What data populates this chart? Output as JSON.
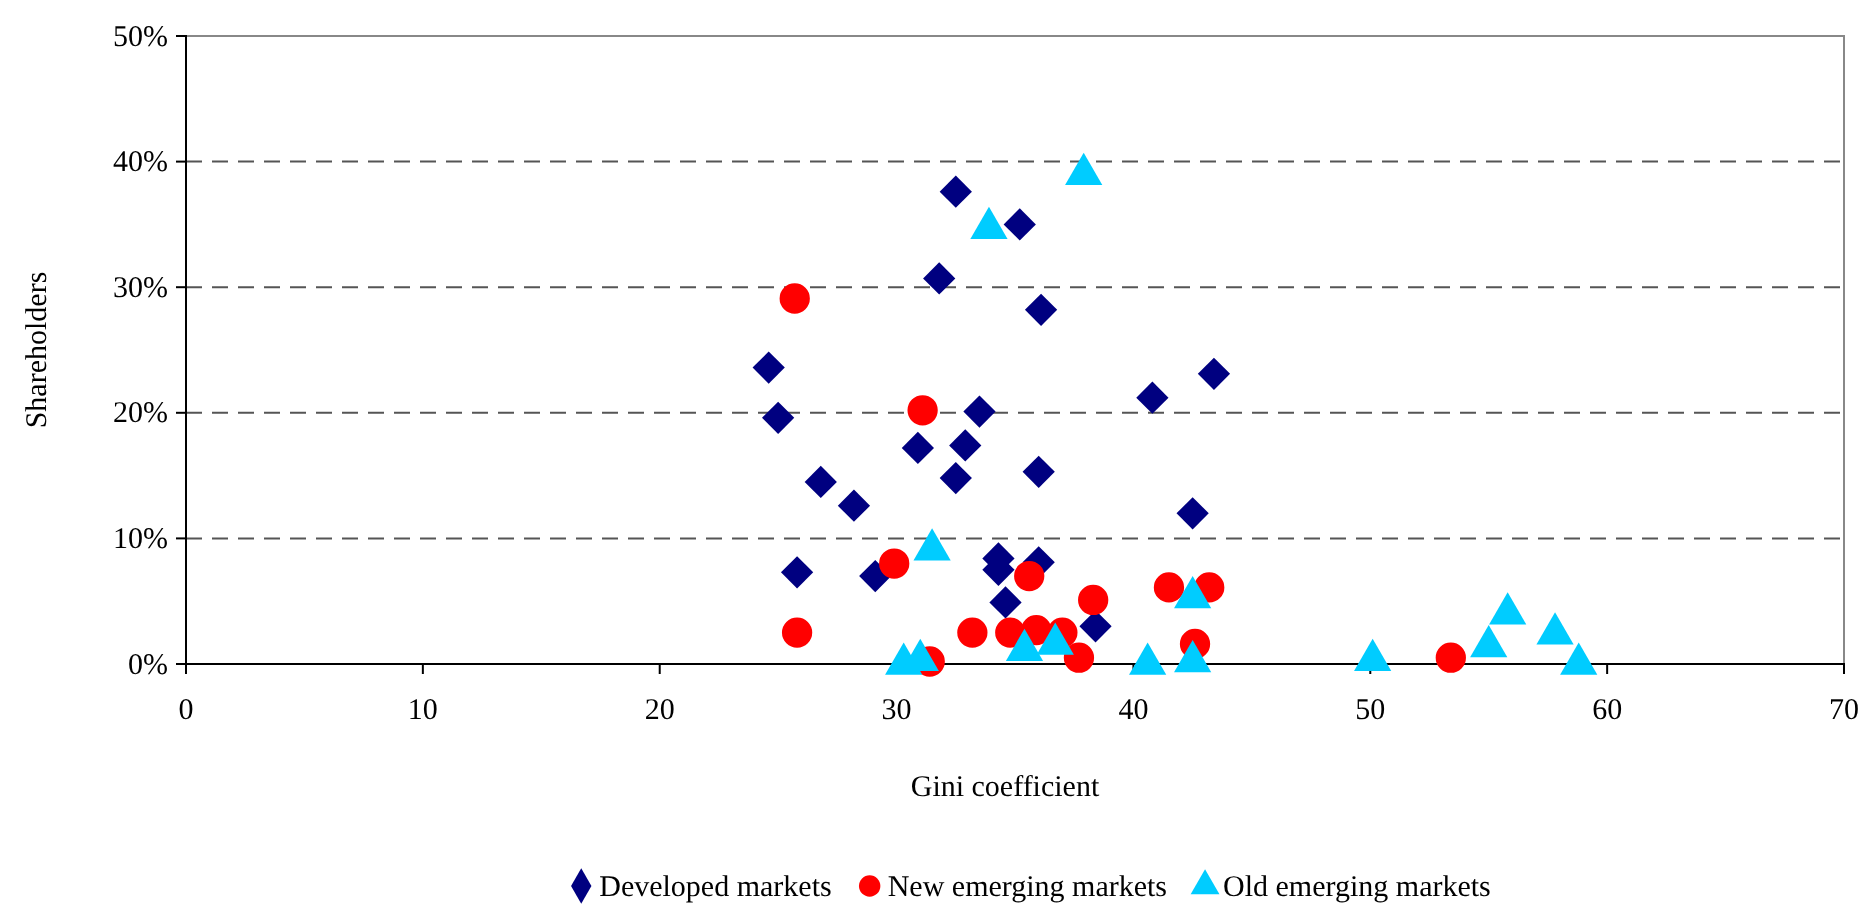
{
  "chart_data": {
    "type": "scatter",
    "xlabel": "Gini coefficient",
    "ylabel": "Shareholders",
    "xlim": [
      0,
      70
    ],
    "xticks": [
      0,
      10,
      20,
      30,
      40,
      50,
      60,
      70
    ],
    "ylim": [
      0,
      50
    ],
    "yticks": [
      {
        "value": 0,
        "label": "0%"
      },
      {
        "value": 10,
        "label": "10%"
      },
      {
        "value": 20,
        "label": "20%"
      },
      {
        "value": 30,
        "label": "30%"
      },
      {
        "value": 40,
        "label": "40%"
      },
      {
        "value": 50,
        "label": "50%"
      }
    ],
    "grid": "y",
    "legend": "bottom",
    "series": [
      {
        "name": "Developed markets",
        "color": "#000080",
        "marker": "diamond",
        "x": [
          24.6,
          25.0,
          25.8,
          26.8,
          28.2,
          29.1,
          30.9,
          32.5,
          32.9,
          33.5,
          31.8,
          32.5,
          35.2,
          36.1,
          36.0,
          34.3,
          34.3,
          34.6,
          36.0,
          38.4,
          40.8,
          43.4,
          42.5
        ],
        "values": [
          23.6,
          19.6,
          7.3,
          14.5,
          12.6,
          7.0,
          17.2,
          14.8,
          17.4,
          20.1,
          30.7,
          37.6,
          35.0,
          28.2,
          15.3,
          8.4,
          7.5,
          4.9,
          8.1,
          3.0,
          21.2,
          23.1,
          12.0
        ]
      },
      {
        "name": "New emerging markets",
        "color": "#ff0000",
        "marker": "circle",
        "x": [
          25.7,
          25.8,
          31.1,
          29.9,
          31.4,
          33.2,
          35.6,
          34.8,
          35.9,
          37.0,
          37.7,
          38.3,
          41.5,
          43.2,
          42.6,
          53.4
        ],
        "values": [
          29.1,
          2.5,
          20.2,
          8.0,
          0.2,
          2.5,
          7.0,
          2.5,
          2.7,
          2.5,
          0.5,
          5.1,
          6.1,
          6.1,
          1.6,
          0.5
        ]
      },
      {
        "name": "Old emerging markets",
        "color": "#00ccff",
        "marker": "triangle",
        "x": [
          37.9,
          33.9,
          31.5,
          30.3,
          31.0,
          35.4,
          36.7,
          40.6,
          42.5,
          42.5,
          50.1,
          55.0,
          55.8,
          57.8,
          58.8
        ],
        "values": [
          39.0,
          34.7,
          9.1,
          0,
          0.3,
          1.1,
          1.6,
          0,
          5.3,
          0.2,
          0.3,
          1.4,
          4.0,
          2.4,
          0
        ]
      }
    ]
  }
}
